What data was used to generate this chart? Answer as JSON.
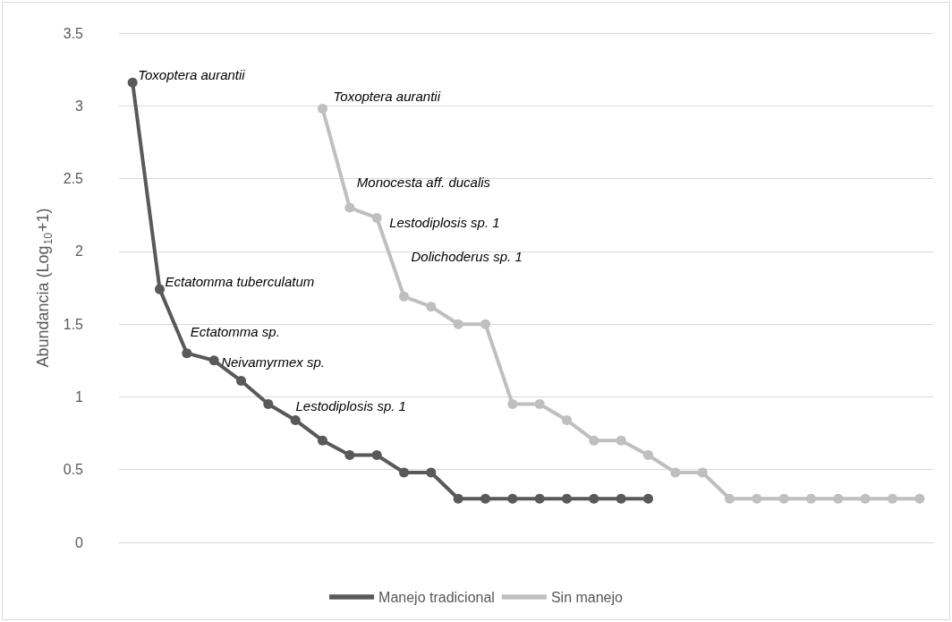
{
  "chart_data": {
    "type": "line",
    "ylabel": "Abundancia (Log$_{10}$+1)",
    "categories": [
      null,
      null,
      null,
      null,
      null,
      null,
      null,
      null,
      null,
      null,
      null,
      null,
      null,
      null,
      null,
      null,
      null,
      null,
      null,
      null,
      null,
      null,
      null,
      null,
      null,
      null,
      null,
      null,
      null,
      null
    ],
    "series": [
      {
        "name": "Manejo tradicional",
        "color": "#595959",
        "values": [
          3.16,
          1.74,
          1.3,
          1.25,
          1.11,
          0.95,
          0.84,
          0.7,
          0.6,
          0.6,
          0.48,
          0.48,
          0.3,
          0.3,
          0.3,
          0.3,
          0.3,
          0.3,
          0.3,
          0.3,
          null,
          null,
          null,
          null,
          null,
          null,
          null,
          null,
          null,
          null
        ]
      },
      {
        "name": "Sin manejo",
        "color": "#bfbfbf",
        "values": [
          null,
          null,
          null,
          null,
          null,
          null,
          null,
          2.98,
          2.3,
          2.23,
          1.69,
          1.62,
          1.5,
          1.5,
          0.95,
          0.95,
          0.84,
          0.7,
          0.7,
          0.6,
          0.48,
          0.48,
          0.3,
          0.3,
          0.3,
          0.3,
          0.3,
          0.3,
          0.3,
          0.3
        ]
      }
    ],
    "annotations": [
      "Toxoptera aurantii",
      "Ectatomma tuberculatum",
      "Ectatomma sp.",
      "Neivamyrmex sp.",
      "Lestodiplosis sp. 1",
      "Toxoptera aurantii",
      "Monocesta aff. ducalis",
      "Lestodiplosis sp. 1",
      "Dolichoderus sp. 1"
    ],
    "ylim": [
      0,
      3.5
    ],
    "yticks": [
      0,
      0.5,
      1,
      1.5,
      2,
      2.5,
      3,
      3.5
    ],
    "grid": "y",
    "legend": "bottom",
    "marker": "circle",
    "line_style": "solid"
  }
}
